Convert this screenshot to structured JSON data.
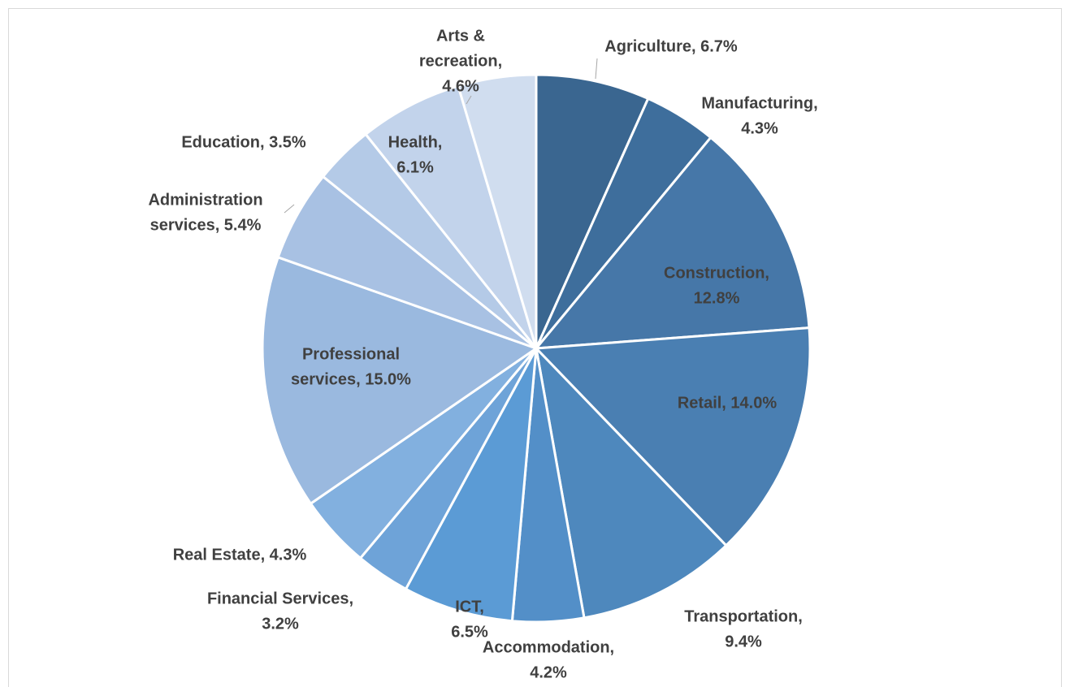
{
  "chart_data": {
    "type": "pie",
    "categories": [
      "Agriculture",
      "Manufacturing",
      "Construction",
      "Retail",
      "Transportation",
      "Accommodation",
      "ICT",
      "Financial Services",
      "Real Estate",
      "Professional services",
      "Administration services",
      "Education",
      "Health",
      "Arts & recreation"
    ],
    "values": [
      6.7,
      4.3,
      12.8,
      14.0,
      9.4,
      4.2,
      6.5,
      3.2,
      4.3,
      15.0,
      5.4,
      3.5,
      6.1,
      4.6
    ],
    "value_labels": [
      [
        "Agriculture, 6.7%"
      ],
      [
        "Manufacturing,",
        "4.3%"
      ],
      [
        "Construction,",
        "12.8%"
      ],
      [
        "Retail, 14.0%"
      ],
      [
        "Transportation,",
        "9.4%"
      ],
      [
        "Accommodation,",
        "4.2%"
      ],
      [
        "ICT,",
        "6.5%"
      ],
      [
        "Financial Services,",
        "3.2%"
      ],
      [
        "Real Estate, 4.3%"
      ],
      [
        "Professional",
        "services, 15.0%"
      ],
      [
        "Administration",
        "services, 5.4%"
      ],
      [
        "Education, 3.5%"
      ],
      [
        "Health,",
        "6.1%"
      ],
      [
        "Arts &",
        "recreation,",
        "4.6%"
      ]
    ],
    "colors": [
      "#3a6690",
      "#3e6e9c",
      "#4677a8",
      "#4a7fb2",
      "#4e88bd",
      "#538fc8",
      "#5b9bd5",
      "#6ea3d8",
      "#82b0df",
      "#9ab9df",
      "#a8c1e3",
      "#b4cae7",
      "#c2d3eb",
      "#d0ddef"
    ]
  }
}
